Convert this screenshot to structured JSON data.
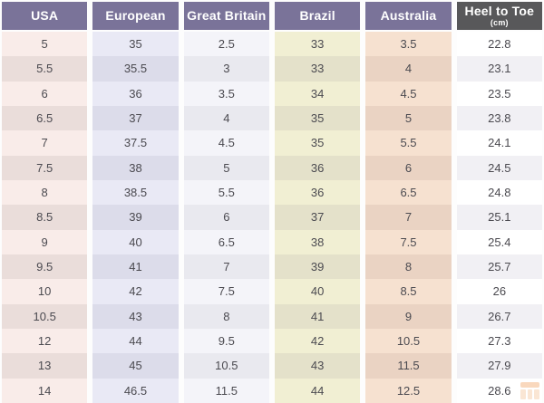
{
  "chart_data": {
    "type": "table",
    "columns": [
      {
        "label": "USA",
        "key": "usa"
      },
      {
        "label": "European",
        "key": "european"
      },
      {
        "label": "Great Britain",
        "key": "great_britain"
      },
      {
        "label": "Brazil",
        "key": "brazil"
      },
      {
        "label": "Australia",
        "key": "australia"
      },
      {
        "label": "Heel to Toe",
        "sublabel": "(cm)",
        "key": "heel_to_toe_cm"
      }
    ],
    "rows": [
      [
        "5",
        "35",
        "2.5",
        "33",
        "3.5",
        "22.8"
      ],
      [
        "5.5",
        "35.5",
        "3",
        "33",
        "4",
        "23.1"
      ],
      [
        "6",
        "36",
        "3.5",
        "34",
        "4.5",
        "23.5"
      ],
      [
        "6.5",
        "37",
        "4",
        "35",
        "5",
        "23.8"
      ],
      [
        "7",
        "37.5",
        "4.5",
        "35",
        "5.5",
        "24.1"
      ],
      [
        "7.5",
        "38",
        "5",
        "36",
        "6",
        "24.5"
      ],
      [
        "8",
        "38.5",
        "5.5",
        "36",
        "6.5",
        "24.8"
      ],
      [
        "8.5",
        "39",
        "6",
        "37",
        "7",
        "25.1"
      ],
      [
        "9",
        "40",
        "6.5",
        "38",
        "7.5",
        "25.4"
      ],
      [
        "9.5",
        "41",
        "7",
        "39",
        "8",
        "25.7"
      ],
      [
        "10",
        "42",
        "7.5",
        "40",
        "8.5",
        "26"
      ],
      [
        "10.5",
        "43",
        "8",
        "41",
        "9",
        "26.7"
      ],
      [
        "12",
        "44",
        "9.5",
        "42",
        "10.5",
        "27.3"
      ],
      [
        "13",
        "45",
        "10.5",
        "43",
        "11.5",
        "27.9"
      ],
      [
        "14",
        "46.5",
        "11.5",
        "44",
        "12.5",
        "28.6"
      ]
    ]
  },
  "colors": {
    "header_background": "#7a7399",
    "header_text": "#ffffff",
    "heel_header_background": "#58585a",
    "cell_text": "#4b4a50",
    "gap_background": "#fdfdfd",
    "columns": {
      "usa": {
        "light": "#f9ece9",
        "dark": "#eaddda"
      },
      "european": {
        "light": "#e9e9f5",
        "dark": "#dcdcea"
      },
      "great_britain": {
        "light": "#f4f4f9",
        "dark": "#e9e9ef"
      },
      "brazil": {
        "light": "#f1efd3",
        "dark": "#e4e1ca"
      },
      "australia": {
        "light": "#f6e1d0",
        "dark": "#ead3c3"
      },
      "heel_to_toe_cm": {
        "light": "#ffffff",
        "dark": "#f1f0f4"
      }
    },
    "watermark_accent": "#f2a96e"
  },
  "watermark": {
    "icon": "table-logo"
  }
}
